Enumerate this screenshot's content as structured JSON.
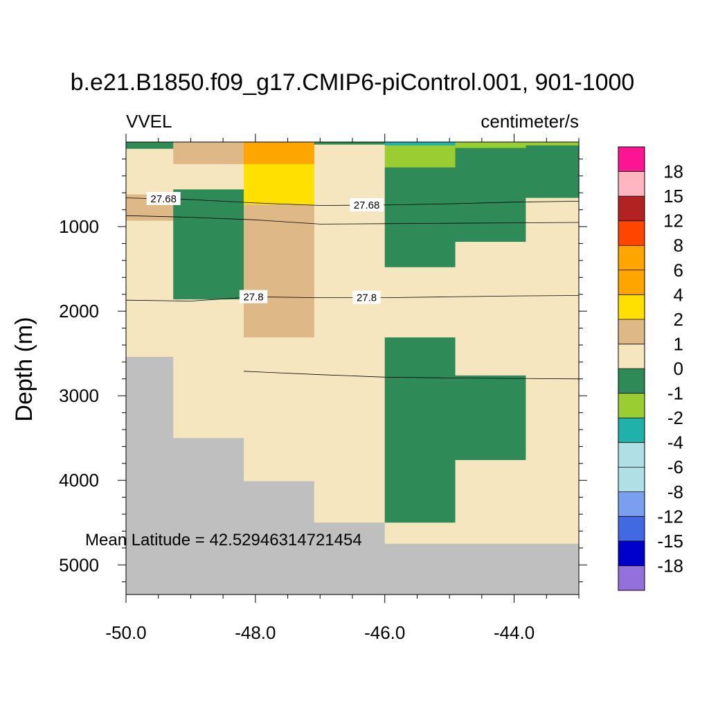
{
  "chart_data": {
    "type": "heatmap",
    "title": "b.e21.B1850.f09_g17.CMIP6-piControl.001, 901-1000",
    "left_label": "VVEL",
    "right_label": "centimeter/s",
    "ylabel": "Depth (m)",
    "xlabel": "",
    "xlim": [
      -50.0,
      -43.0
    ],
    "ylim": [
      5350,
      0
    ],
    "y_reversed": true,
    "x_ticks": [
      -50.0,
      -48.0,
      -46.0,
      -44.0
    ],
    "x_tick_labels": [
      "-50.0",
      "-48.0",
      "-46.0",
      "-44.0"
    ],
    "y_ticks": [
      1000,
      2000,
      3000,
      4000,
      5000
    ],
    "y_tick_labels": [
      "1000",
      "2000",
      "3000",
      "4000",
      "5000"
    ],
    "annotation": "Mean Latitude = 42.52946314721454",
    "missing_color": "#BFBFBF",
    "colorbar": {
      "levels": [
        "18",
        "15",
        "12",
        "8",
        "6",
        "4",
        "2",
        "1",
        "0",
        "-1",
        "-2",
        "-4",
        "-6",
        "-8",
        "-12",
        "-15",
        "-18"
      ],
      "colors": [
        "#FF1493",
        "#FFB6C1",
        "#B22222",
        "#FF4500",
        "#FFA500",
        "#FFA500",
        "#FFE000",
        "#DEB887",
        "#F5E6C0",
        "#2E8B57",
        "#9ACD32",
        "#20B2AA",
        "#B0E0E6",
        "#B0E0E6",
        "#7B9FF0",
        "#4169E1",
        "#0000CD",
        "#9370DB"
      ]
    },
    "columns": [
      {
        "x0": -50.0,
        "x1": -49.27,
        "cells": [
          {
            "d0": 0,
            "d1": 80,
            "color": "#2E8B57"
          },
          {
            "d0": 80,
            "d1": 620,
            "color": "#F5E6C0"
          },
          {
            "d0": 620,
            "d1": 930,
            "color": "#DEB887"
          },
          {
            "d0": 930,
            "d1": 2540,
            "color": "#F5E6C0"
          },
          {
            "d0": 2540,
            "d1": 5350,
            "color": "#BFBFBF"
          }
        ]
      },
      {
        "x0": -49.27,
        "x1": -48.18,
        "cells": [
          {
            "d0": 0,
            "d1": 260,
            "color": "#DEB887"
          },
          {
            "d0": 260,
            "d1": 560,
            "color": "#F5E6C0"
          },
          {
            "d0": 560,
            "d1": 1860,
            "color": "#2E8B57"
          },
          {
            "d0": 1860,
            "d1": 3500,
            "color": "#F5E6C0"
          },
          {
            "d0": 3500,
            "d1": 5350,
            "color": "#BFBFBF"
          }
        ]
      },
      {
        "x0": -48.18,
        "x1": -47.09,
        "cells": [
          {
            "d0": 0,
            "d1": 260,
            "color": "#FFA500"
          },
          {
            "d0": 260,
            "d1": 740,
            "color": "#FFE000"
          },
          {
            "d0": 740,
            "d1": 2310,
            "color": "#DEB887"
          },
          {
            "d0": 2310,
            "d1": 4010,
            "color": "#F5E6C0"
          },
          {
            "d0": 4010,
            "d1": 5350,
            "color": "#BFBFBF"
          }
        ]
      },
      {
        "x0": -47.09,
        "x1": -46.0,
        "cells": [
          {
            "d0": 0,
            "d1": 30,
            "color": "#2E8B57"
          },
          {
            "d0": 30,
            "d1": 4500,
            "color": "#F5E6C0"
          },
          {
            "d0": 4500,
            "d1": 5350,
            "color": "#BFBFBF"
          }
        ]
      },
      {
        "x0": -46.0,
        "x1": -44.91,
        "cells": [
          {
            "d0": 0,
            "d1": 40,
            "color": "#20B2AA"
          },
          {
            "d0": 40,
            "d1": 300,
            "color": "#9ACD32"
          },
          {
            "d0": 300,
            "d1": 1480,
            "color": "#2E8B57"
          },
          {
            "d0": 1480,
            "d1": 2310,
            "color": "#F5E6C0"
          },
          {
            "d0": 2310,
            "d1": 4500,
            "color": "#2E8B57"
          },
          {
            "d0": 4500,
            "d1": 4750,
            "color": "#F5E6C0"
          },
          {
            "d0": 4750,
            "d1": 5350,
            "color": "#BFBFBF"
          }
        ]
      },
      {
        "x0": -44.91,
        "x1": -43.82,
        "cells": [
          {
            "d0": 0,
            "d1": 70,
            "color": "#9ACD32"
          },
          {
            "d0": 70,
            "d1": 1180,
            "color": "#2E8B57"
          },
          {
            "d0": 1180,
            "d1": 2760,
            "color": "#F5E6C0"
          },
          {
            "d0": 2760,
            "d1": 3760,
            "color": "#2E8B57"
          },
          {
            "d0": 3760,
            "d1": 4750,
            "color": "#F5E6C0"
          },
          {
            "d0": 4750,
            "d1": 5350,
            "color": "#BFBFBF"
          }
        ]
      },
      {
        "x0": -43.82,
        "x1": -43.0,
        "cells": [
          {
            "d0": 0,
            "d1": 40,
            "color": "#9ACD32"
          },
          {
            "d0": 40,
            "d1": 660,
            "color": "#2E8B57"
          },
          {
            "d0": 660,
            "d1": 4750,
            "color": "#F5E6C0"
          },
          {
            "d0": 4750,
            "d1": 5350,
            "color": "#BFBFBF"
          }
        ]
      }
    ],
    "contours": [
      {
        "label": "27.68",
        "label_at": [
          -49.42,
          -46.28
        ],
        "points": [
          [
            -50.0,
            660
          ],
          [
            -49.0,
            680
          ],
          [
            -48.0,
            720
          ],
          [
            -47.0,
            750
          ],
          [
            -46.0,
            745
          ],
          [
            -45.0,
            730
          ],
          [
            -44.0,
            710
          ],
          [
            -43.0,
            700
          ]
        ]
      },
      {
        "label": "",
        "label_at": [],
        "points": [
          [
            -50.0,
            870
          ],
          [
            -49.0,
            890
          ],
          [
            -48.0,
            920
          ],
          [
            -47.0,
            970
          ],
          [
            -46.0,
            965
          ],
          [
            -45.0,
            960
          ],
          [
            -44.0,
            955
          ],
          [
            -43.0,
            950
          ]
        ]
      },
      {
        "label": "27.8",
        "label_at": [
          -48.03,
          -46.28
        ],
        "points": [
          [
            -50.0,
            1870
          ],
          [
            -49.0,
            1880
          ],
          [
            -48.0,
            1830
          ],
          [
            -47.0,
            1840
          ],
          [
            -46.0,
            1840
          ],
          [
            -45.0,
            1830
          ],
          [
            -44.0,
            1820
          ],
          [
            -43.0,
            1815
          ]
        ]
      },
      {
        "label": "",
        "label_at": [],
        "points": [
          [
            -48.18,
            2710
          ],
          [
            -47.0,
            2750
          ],
          [
            -46.0,
            2780
          ],
          [
            -45.0,
            2790
          ],
          [
            -44.0,
            2795
          ],
          [
            -43.0,
            2800
          ]
        ]
      }
    ]
  }
}
